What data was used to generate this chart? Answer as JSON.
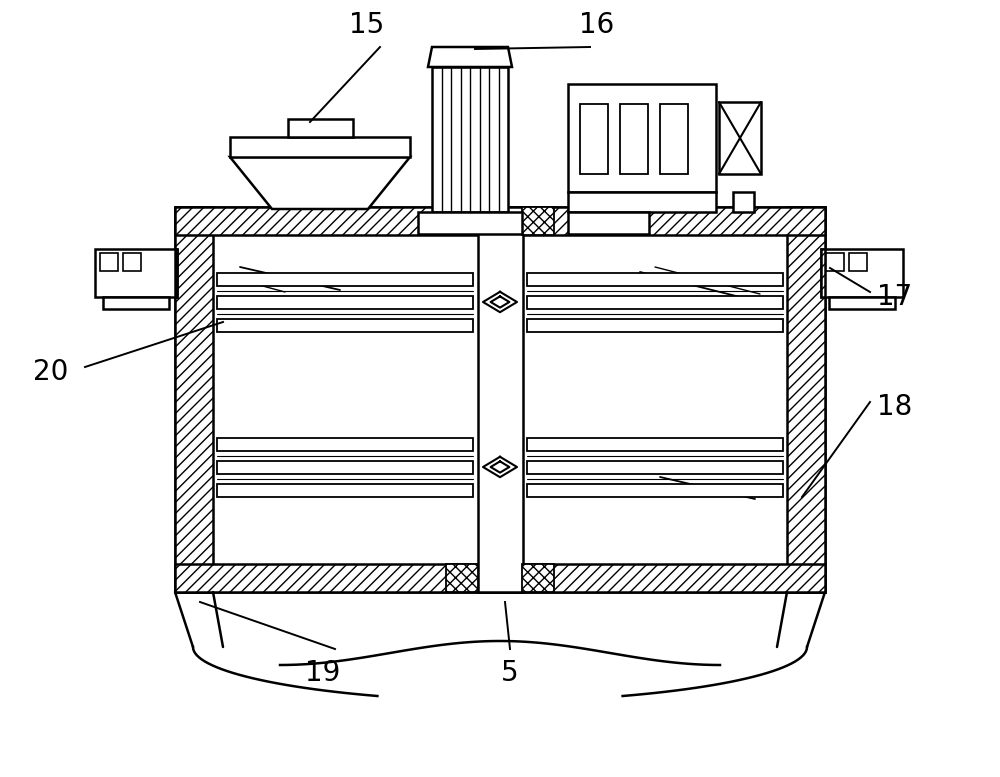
{
  "bg_color": "#ffffff",
  "line_color": "#000000",
  "fig_width": 10.0,
  "fig_height": 7.77,
  "label_fontsize": 20,
  "ann_lw": 1.4
}
